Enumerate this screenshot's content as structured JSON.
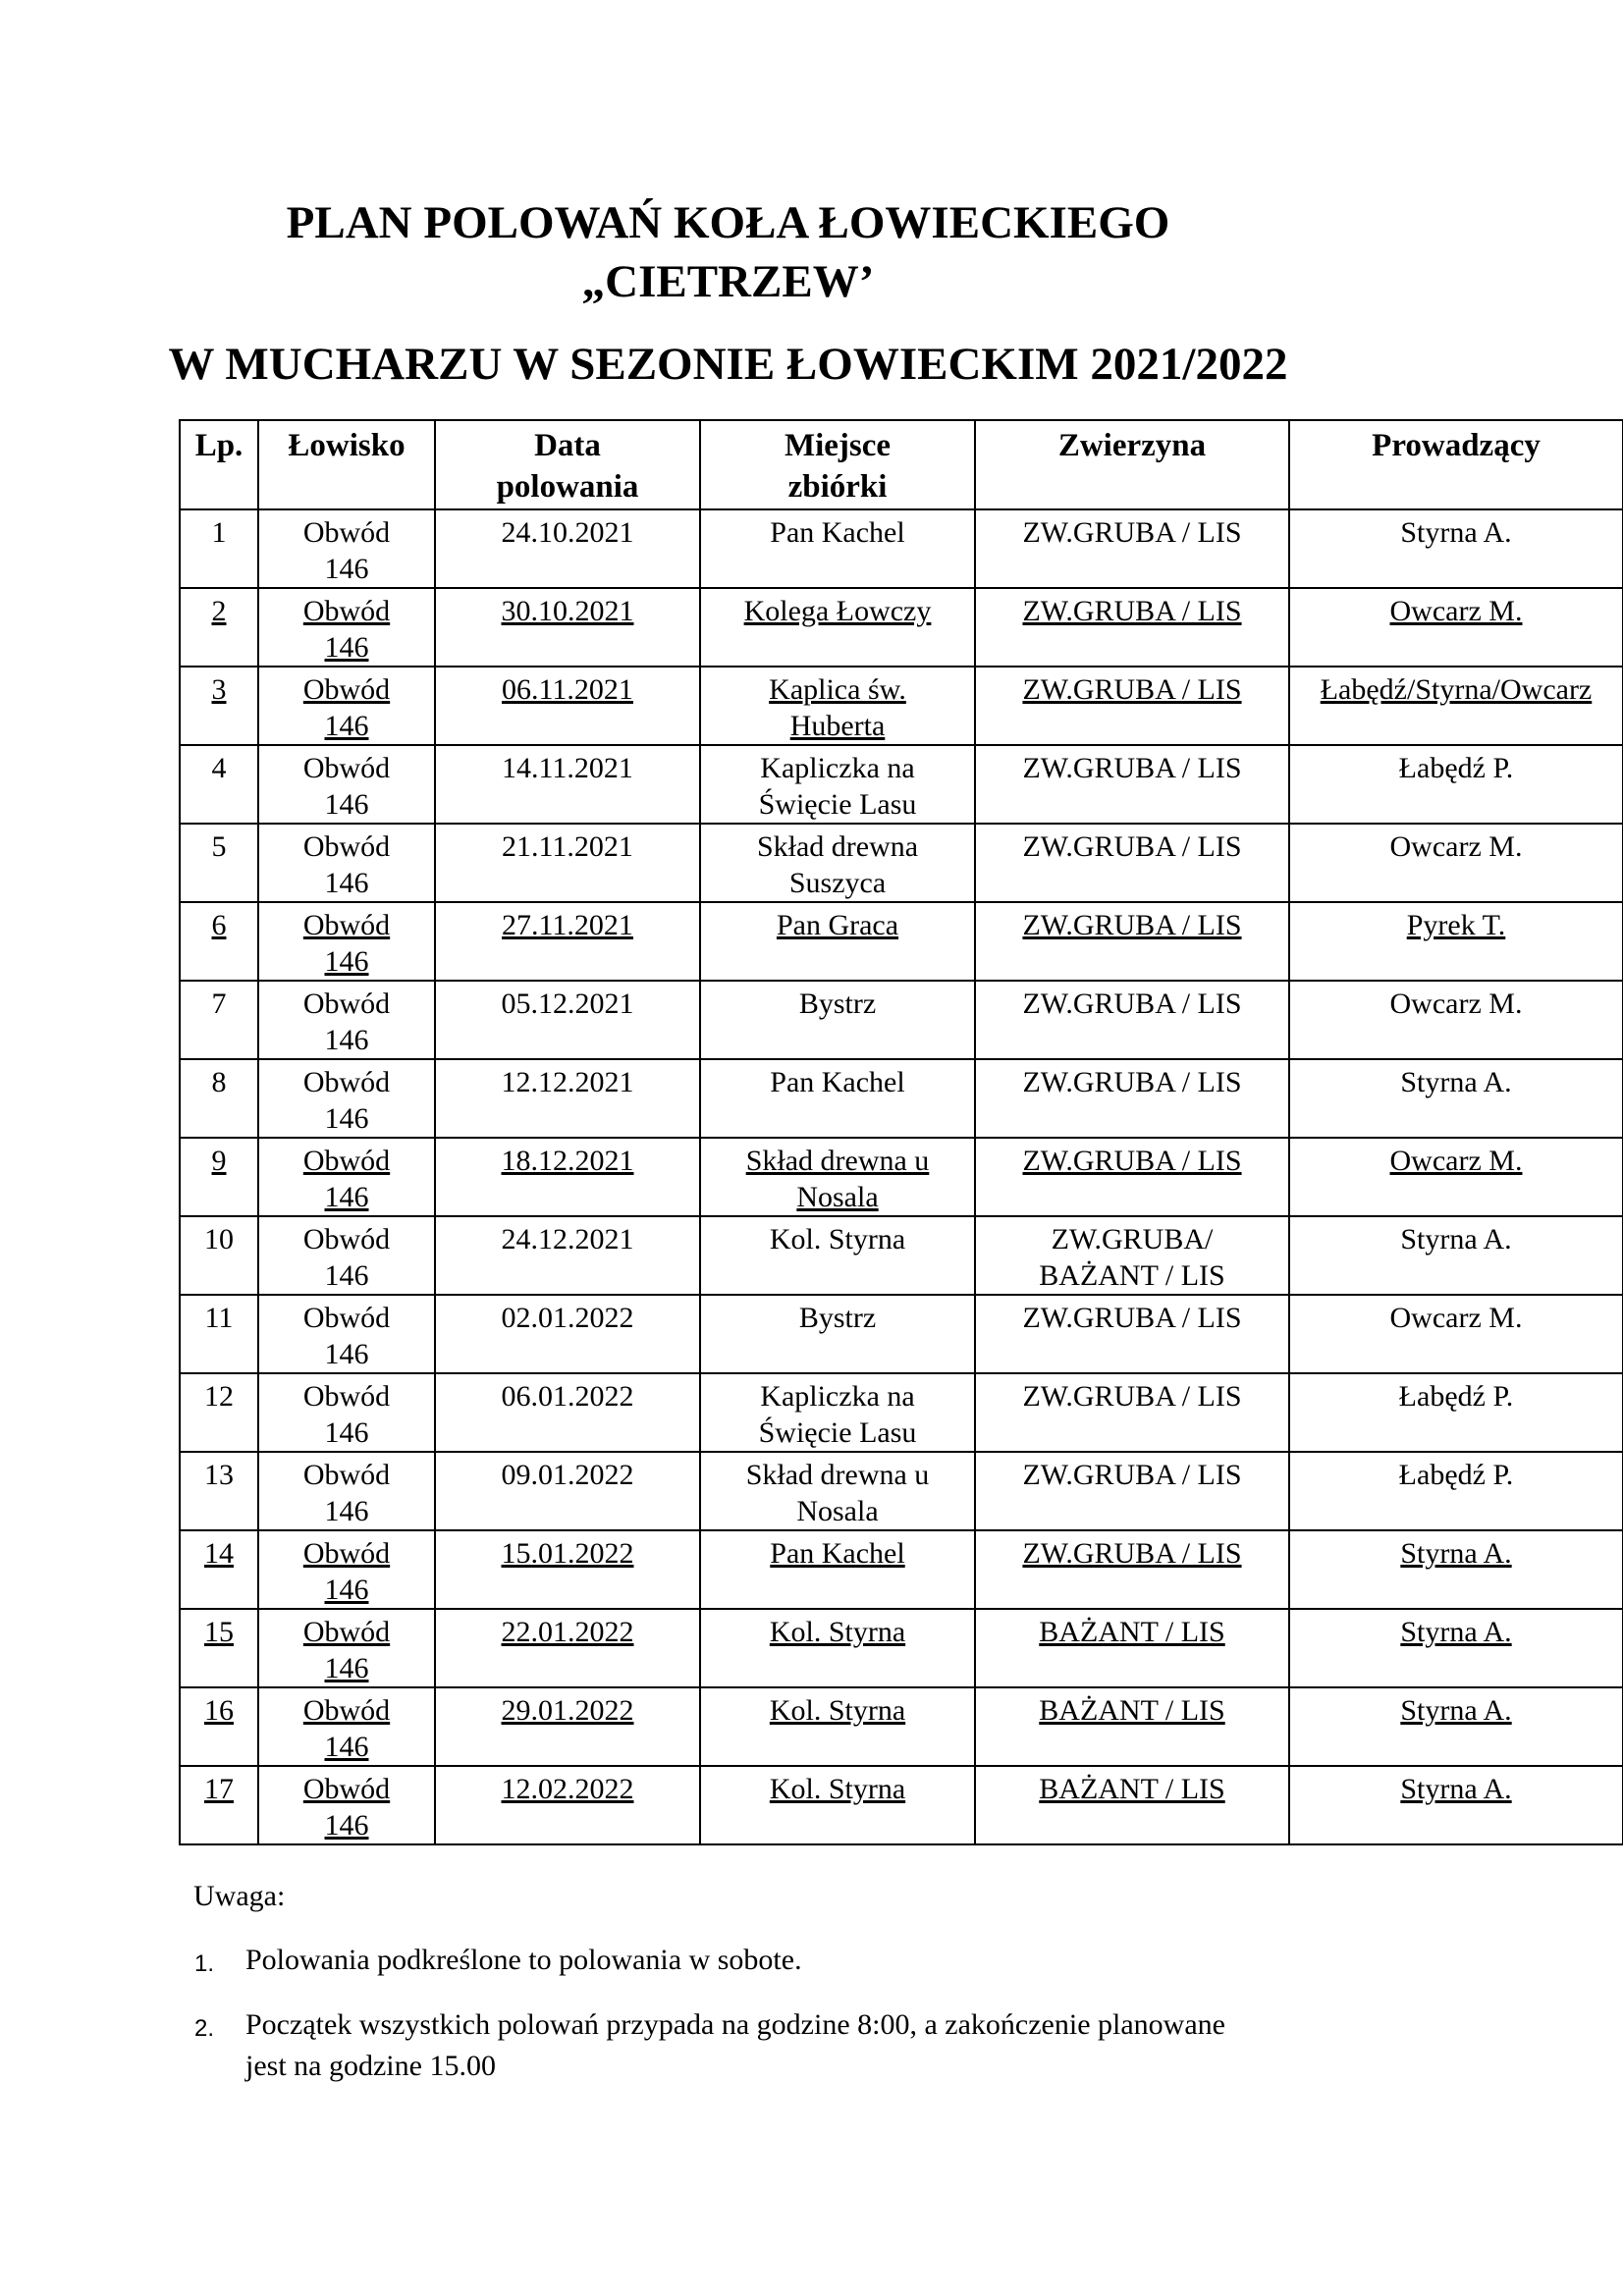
{
  "title": {
    "line1": "PLAN POLOWAŃ KOŁA ŁOWIECKIEGO",
    "line2": "„CIETRZEW’",
    "line3": "W MUCHARZU W SEZONIE ŁOWIECKIM 2021/2022"
  },
  "table": {
    "headers": [
      [
        "Lp.",
        ""
      ],
      [
        "Łowisko",
        ""
      ],
      [
        "Data",
        "polowania"
      ],
      [
        "Miejsce",
        "zbiórki"
      ],
      [
        "Zwierzyna",
        ""
      ],
      [
        "Prowadzący",
        ""
      ]
    ],
    "rows": [
      {
        "underlined": false,
        "cells": [
          [
            "1"
          ],
          [
            "Obwód",
            "146"
          ],
          [
            "24.10.2021"
          ],
          [
            "Pan Kachel"
          ],
          [
            "ZW.GRUBA / LIS"
          ],
          [
            "Styrna A."
          ]
        ]
      },
      {
        "underlined": true,
        "cells": [
          [
            "2"
          ],
          [
            "Obwód",
            "146"
          ],
          [
            "30.10.2021"
          ],
          [
            "Kolega Łowczy"
          ],
          [
            "ZW.GRUBA / LIS"
          ],
          [
            "Owcarz M."
          ]
        ]
      },
      {
        "underlined": true,
        "cells": [
          [
            "3"
          ],
          [
            "Obwód",
            "146"
          ],
          [
            "06.11.2021"
          ],
          [
            "Kaplica św.",
            "Huberta"
          ],
          [
            "ZW.GRUBA / LIS"
          ],
          [
            "Łabędź/Styrna/Owcarz"
          ]
        ]
      },
      {
        "underlined": false,
        "cells": [
          [
            "4"
          ],
          [
            "Obwód",
            "146"
          ],
          [
            "14.11.2021"
          ],
          [
            "Kapliczka na",
            "Święcie Lasu"
          ],
          [
            "ZW.GRUBA / LIS"
          ],
          [
            "Łabędź P."
          ]
        ]
      },
      {
        "underlined": false,
        "cells": [
          [
            "5"
          ],
          [
            "Obwód",
            "146"
          ],
          [
            "21.11.2021"
          ],
          [
            "Skład drewna",
            "Suszyca"
          ],
          [
            "ZW.GRUBA / LIS"
          ],
          [
            "Owcarz M."
          ]
        ]
      },
      {
        "underlined": true,
        "cells": [
          [
            "6"
          ],
          [
            "Obwód",
            "146"
          ],
          [
            "27.11.2021"
          ],
          [
            "Pan Graca"
          ],
          [
            "ZW.GRUBA / LIS"
          ],
          [
            "Pyrek T."
          ]
        ]
      },
      {
        "underlined": false,
        "cells": [
          [
            "7"
          ],
          [
            "Obwód",
            "146"
          ],
          [
            "05.12.2021"
          ],
          [
            "Bystrz"
          ],
          [
            "ZW.GRUBA / LIS"
          ],
          [
            "Owcarz M."
          ]
        ]
      },
      {
        "underlined": false,
        "cells": [
          [
            "8"
          ],
          [
            "Obwód",
            "146"
          ],
          [
            "12.12.2021"
          ],
          [
            "Pan Kachel"
          ],
          [
            "ZW.GRUBA / LIS"
          ],
          [
            "Styrna A."
          ]
        ]
      },
      {
        "underlined": true,
        "cells": [
          [
            "9"
          ],
          [
            "Obwód",
            "146"
          ],
          [
            "18.12.2021"
          ],
          [
            "Skład drewna u",
            "Nosala"
          ],
          [
            "ZW.GRUBA / LIS"
          ],
          [
            "Owcarz M."
          ]
        ]
      },
      {
        "underlined": false,
        "cells": [
          [
            "10"
          ],
          [
            "Obwód",
            "146"
          ],
          [
            "24.12.2021"
          ],
          [
            "Kol. Styrna"
          ],
          [
            "ZW.GRUBA/",
            "BAŻANT / LIS"
          ],
          [
            "Styrna A."
          ]
        ]
      },
      {
        "underlined": false,
        "cells": [
          [
            "11"
          ],
          [
            "Obwód",
            "146"
          ],
          [
            "02.01.2022"
          ],
          [
            "Bystrz"
          ],
          [
            "ZW.GRUBA / LIS"
          ],
          [
            "Owcarz M."
          ]
        ]
      },
      {
        "underlined": false,
        "cells": [
          [
            "12"
          ],
          [
            "Obwód",
            "146"
          ],
          [
            "06.01.2022"
          ],
          [
            "Kapliczka na",
            "Święcie Lasu"
          ],
          [
            "ZW.GRUBA / LIS"
          ],
          [
            "Łabędź P."
          ]
        ]
      },
      {
        "underlined": false,
        "cells": [
          [
            "13"
          ],
          [
            "Obwód",
            "146"
          ],
          [
            "09.01.2022"
          ],
          [
            "Skład drewna u",
            "Nosala"
          ],
          [
            "ZW.GRUBA / LIS"
          ],
          [
            "Łabędź P."
          ]
        ]
      },
      {
        "underlined": true,
        "cells": [
          [
            "14"
          ],
          [
            "Obwód",
            "146"
          ],
          [
            "15.01.2022"
          ],
          [
            "Pan Kachel"
          ],
          [
            "ZW.GRUBA / LIS"
          ],
          [
            "Styrna A."
          ]
        ]
      },
      {
        "underlined": true,
        "cells": [
          [
            "15"
          ],
          [
            "Obwód",
            "146"
          ],
          [
            "22.01.2022"
          ],
          [
            "Kol. Styrna"
          ],
          [
            "BAŻANT / LIS"
          ],
          [
            "Styrna A."
          ]
        ]
      },
      {
        "underlined": true,
        "cells": [
          [
            "16"
          ],
          [
            "Obwód",
            "146"
          ],
          [
            "29.01.2022"
          ],
          [
            "Kol. Styrna"
          ],
          [
            "BAŻANT / LIS"
          ],
          [
            "Styrna A."
          ]
        ]
      },
      {
        "underlined": true,
        "cells": [
          [
            "17"
          ],
          [
            "Obwód",
            "146"
          ],
          [
            "12.02.2022"
          ],
          [
            "Kol. Styrna"
          ],
          [
            "BAŻANT / LIS"
          ],
          [
            "Styrna A."
          ]
        ]
      }
    ]
  },
  "notes": {
    "label": "Uwaga:",
    "items": [
      {
        "num": "1.",
        "lines": [
          "Polowania podkreślone to polowania w sobote."
        ]
      },
      {
        "num": "2.",
        "lines": [
          "Początek wszystkich polowań przypada na godzine 8:00, a zakończenie planowane",
          "jest na godzine 15.00"
        ]
      }
    ]
  }
}
